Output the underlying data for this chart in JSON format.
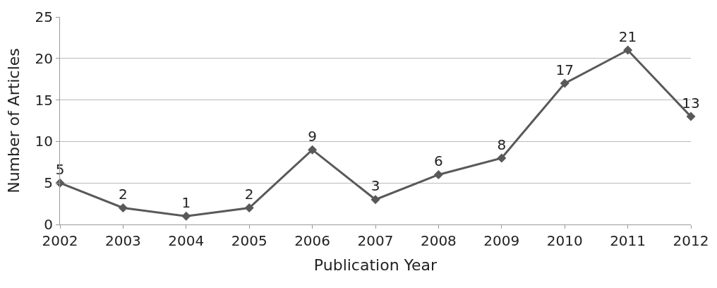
{
  "chart_data": {
    "type": "line",
    "xlabel": "Publication Year",
    "ylabel": "Number of Articles",
    "categories": [
      "2002",
      "2003",
      "2004",
      "2005",
      "2006",
      "2007",
      "2008",
      "2009",
      "2010",
      "2011",
      "2012"
    ],
    "series": [
      {
        "color": "#595959",
        "values": [
          5,
          2,
          1,
          2,
          9,
          3,
          6,
          8,
          17,
          21,
          13
        ]
      }
    ],
    "ylim": [
      0,
      25
    ],
    "yticks": [
      0,
      5,
      10,
      15,
      20,
      25
    ],
    "grid": "y",
    "marker": "diamond",
    "line_style": "solid",
    "data_labels": true
  }
}
